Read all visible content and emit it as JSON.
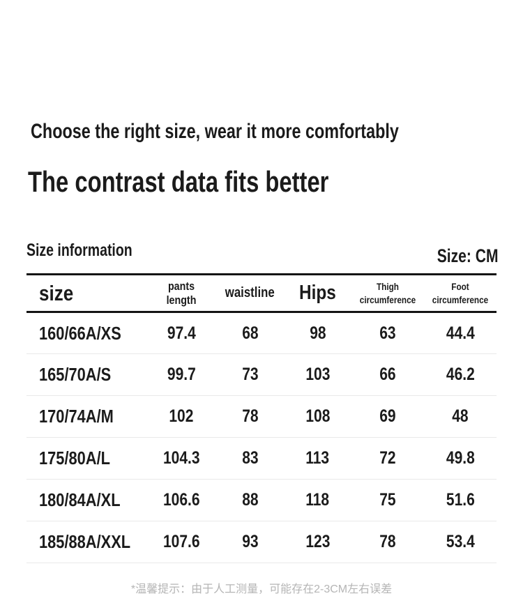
{
  "page": {
    "subtitle": "Choose the right size, wear it more comfortably",
    "title": "The contrast data fits better",
    "section_label": "Size information",
    "unit_label": "Size: CM",
    "footnote": "*温馨提示：由于人工测量，可能存在2-3CM左右误差"
  },
  "size_table": {
    "columns": [
      {
        "label": "size"
      },
      {
        "label": "pants length"
      },
      {
        "label": "waistline"
      },
      {
        "label": "Hips"
      },
      {
        "label": "Thigh circumference"
      },
      {
        "label": "Foot circumference"
      }
    ],
    "rows": [
      {
        "cells": [
          "160/66A/XS",
          "97.4",
          "68",
          "98",
          "63",
          "44.4"
        ]
      },
      {
        "cells": [
          "165/70A/S",
          "99.7",
          "73",
          "103",
          "66",
          "46.2"
        ]
      },
      {
        "cells": [
          "170/74A/M",
          "102",
          "78",
          "108",
          "69",
          "48"
        ]
      },
      {
        "cells": [
          "175/80A/L",
          "104.3",
          "83",
          "113",
          "72",
          "49.8"
        ]
      },
      {
        "cells": [
          "180/84A/XL",
          "106.6",
          "88",
          "118",
          "75",
          "51.6"
        ]
      },
      {
        "cells": [
          "185/88A/XXL",
          "107.6",
          "93",
          "123",
          "78",
          "53.4"
        ]
      }
    ]
  },
  "colors": {
    "text": "#1b1b1b",
    "table_border": "#141414",
    "row_divider": "#e9e9e9",
    "footnote_text": "#b5b5b5",
    "background": "#ffffff"
  }
}
